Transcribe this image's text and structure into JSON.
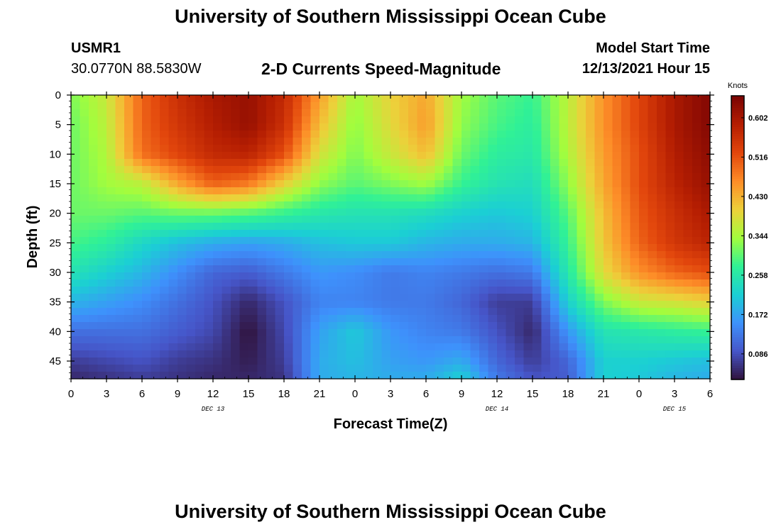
{
  "header": {
    "title": "University of Southern Mississippi Ocean Cube",
    "station_id": "USMR1",
    "coordinates": "30.0770N  88.5830W",
    "subtitle": "2-D Currents Speed-Magnitude",
    "model_start_label": "Model Start Time",
    "model_start_value": "12/13/2021 Hour 15"
  },
  "footer": {
    "title": "University of Southern Mississippi Ocean Cube"
  },
  "chart_data": {
    "type": "heatmap",
    "xlabel": "Forecast Time(Z)",
    "ylabel": "Depth (ft)",
    "x_ticks": [
      "0",
      "3",
      "6",
      "9",
      "12",
      "15",
      "18",
      "21",
      "0",
      "3",
      "6",
      "9",
      "12",
      "15",
      "18",
      "21",
      "0",
      "3",
      "6"
    ],
    "x_range_hours": [
      0,
      54
    ],
    "day_labels": [
      {
        "label": "DEC 13",
        "hour": 12
      },
      {
        "label": "DEC 14",
        "hour": 36
      },
      {
        "label": "DEC 15",
        "hour": 51
      }
    ],
    "y_ticks": [
      0,
      5,
      10,
      15,
      20,
      25,
      30,
      35,
      40,
      45
    ],
    "y_range": [
      0,
      48
    ],
    "colorbar": {
      "title": "Knots",
      "ticks": [
        0.602,
        0.516,
        0.43,
        0.344,
        0.258,
        0.172,
        0.086
      ],
      "range": [
        0.03,
        0.65
      ]
    },
    "grid_x_hours": [
      0,
      3,
      6,
      9,
      12,
      15,
      18,
      21,
      24,
      27,
      30,
      33,
      36,
      39,
      42,
      45,
      48,
      51,
      54
    ],
    "grid_y_depths": [
      0,
      5,
      10,
      15,
      20,
      25,
      30,
      35,
      40,
      45,
      48
    ],
    "values": [
      [
        0.32,
        0.37,
        0.5,
        0.56,
        0.6,
        0.62,
        0.57,
        0.45,
        0.34,
        0.4,
        0.44,
        0.34,
        0.3,
        0.28,
        0.36,
        0.46,
        0.53,
        0.6,
        0.64
      ],
      [
        0.31,
        0.36,
        0.5,
        0.55,
        0.59,
        0.62,
        0.56,
        0.42,
        0.33,
        0.39,
        0.45,
        0.33,
        0.29,
        0.27,
        0.36,
        0.46,
        0.53,
        0.6,
        0.64
      ],
      [
        0.31,
        0.35,
        0.49,
        0.53,
        0.57,
        0.58,
        0.52,
        0.38,
        0.32,
        0.37,
        0.42,
        0.31,
        0.27,
        0.26,
        0.35,
        0.45,
        0.52,
        0.59,
        0.63
      ],
      [
        0.31,
        0.34,
        0.36,
        0.44,
        0.5,
        0.48,
        0.4,
        0.33,
        0.3,
        0.32,
        0.34,
        0.28,
        0.25,
        0.24,
        0.33,
        0.44,
        0.52,
        0.58,
        0.62
      ],
      [
        0.31,
        0.31,
        0.3,
        0.31,
        0.31,
        0.3,
        0.28,
        0.26,
        0.25,
        0.25,
        0.24,
        0.22,
        0.21,
        0.22,
        0.3,
        0.42,
        0.51,
        0.56,
        0.6
      ],
      [
        0.29,
        0.27,
        0.23,
        0.2,
        0.18,
        0.17,
        0.18,
        0.2,
        0.21,
        0.21,
        0.19,
        0.18,
        0.18,
        0.19,
        0.28,
        0.41,
        0.5,
        0.55,
        0.58
      ],
      [
        0.25,
        0.22,
        0.19,
        0.15,
        0.11,
        0.1,
        0.13,
        0.16,
        0.15,
        0.13,
        0.14,
        0.13,
        0.12,
        0.13,
        0.26,
        0.39,
        0.46,
        0.5,
        0.52
      ],
      [
        0.19,
        0.17,
        0.15,
        0.12,
        0.09,
        0.05,
        0.09,
        0.14,
        0.14,
        0.13,
        0.13,
        0.11,
        0.07,
        0.07,
        0.22,
        0.32,
        0.37,
        0.38,
        0.4
      ],
      [
        0.12,
        0.12,
        0.12,
        0.1,
        0.08,
        0.03,
        0.08,
        0.17,
        0.21,
        0.16,
        0.14,
        0.13,
        0.09,
        0.05,
        0.16,
        0.25,
        0.26,
        0.27,
        0.28
      ],
      [
        0.07,
        0.08,
        0.09,
        0.07,
        0.06,
        0.04,
        0.07,
        0.18,
        0.2,
        0.17,
        0.16,
        0.18,
        0.11,
        0.07,
        0.11,
        0.22,
        0.22,
        0.21,
        0.2
      ],
      [
        0.05,
        0.06,
        0.07,
        0.06,
        0.05,
        0.05,
        0.06,
        0.18,
        0.19,
        0.18,
        0.18,
        0.22,
        0.13,
        0.09,
        0.1,
        0.22,
        0.21,
        0.19,
        0.18
      ]
    ]
  }
}
